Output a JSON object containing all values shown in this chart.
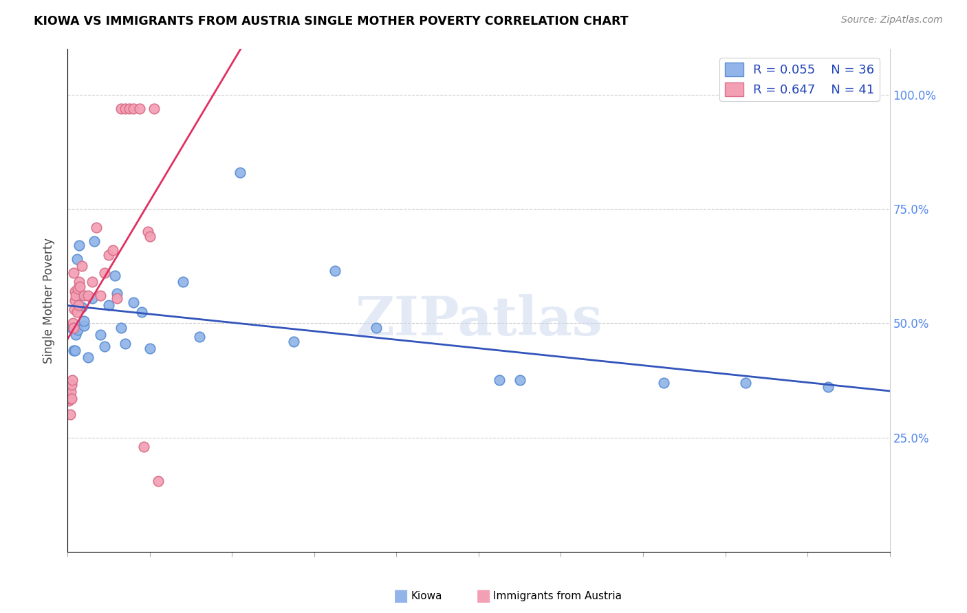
{
  "title": "KIOWA VS IMMIGRANTS FROM AUSTRIA SINGLE MOTHER POVERTY CORRELATION CHART",
  "source": "Source: ZipAtlas.com",
  "ylabel": "Single Mother Poverty",
  "ytick_labels": [
    "25.0%",
    "50.0%",
    "75.0%",
    "100.0%"
  ],
  "legend1_R": "0.055",
  "legend1_N": "36",
  "legend2_R": "0.647",
  "legend2_N": "41",
  "kiowa_color": "#92b4e8",
  "kiowa_edge": "#5a8fd4",
  "austria_color": "#f4a0b4",
  "austria_edge": "#d9708a",
  "line_blue": "#3355bb",
  "line_pink": "#e03060",
  "background": "#ffffff",
  "xlim": [
    0.0,
    0.2
  ],
  "ylim": [
    0.0,
    1.1
  ],
  "kiowa_x": [
    0.001,
    0.0012,
    0.0015,
    0.0018,
    0.002,
    0.0022,
    0.0025,
    0.0028,
    0.003,
    0.0035,
    0.004,
    0.004,
    0.005,
    0.006,
    0.0065,
    0.008,
    0.009,
    0.01,
    0.0115,
    0.012,
    0.013,
    0.014,
    0.016,
    0.018,
    0.02,
    0.028,
    0.032,
    0.042,
    0.055,
    0.065,
    0.075,
    0.105,
    0.11,
    0.145,
    0.165,
    0.185
  ],
  "kiowa_y": [
    0.49,
    0.49,
    0.44,
    0.44,
    0.475,
    0.64,
    0.485,
    0.67,
    0.56,
    0.535,
    0.495,
    0.505,
    0.425,
    0.555,
    0.68,
    0.475,
    0.45,
    0.54,
    0.605,
    0.565,
    0.49,
    0.455,
    0.545,
    0.525,
    0.445,
    0.59,
    0.47,
    0.83,
    0.46,
    0.615,
    0.49,
    0.375,
    0.375,
    0.37,
    0.37,
    0.36
  ],
  "austria_x": [
    0.0003,
    0.0004,
    0.0005,
    0.0006,
    0.0007,
    0.0008,
    0.0009,
    0.001,
    0.0011,
    0.0012,
    0.0014,
    0.0015,
    0.0016,
    0.0017,
    0.0018,
    0.002,
    0.0022,
    0.0024,
    0.0026,
    0.0028,
    0.003,
    0.0035,
    0.004,
    0.005,
    0.006,
    0.007,
    0.008,
    0.009,
    0.01,
    0.011,
    0.012,
    0.013,
    0.014,
    0.015,
    0.016,
    0.0175,
    0.0185,
    0.0195,
    0.02,
    0.021,
    0.022
  ],
  "austria_y": [
    0.33,
    0.335,
    0.34,
    0.3,
    0.335,
    0.35,
    0.335,
    0.365,
    0.375,
    0.5,
    0.49,
    0.61,
    0.53,
    0.55,
    0.57,
    0.56,
    0.525,
    0.575,
    0.54,
    0.59,
    0.58,
    0.625,
    0.56,
    0.56,
    0.59,
    0.71,
    0.56,
    0.61,
    0.65,
    0.66,
    0.555,
    0.97,
    0.97,
    0.97,
    0.97,
    0.97,
    0.23,
    0.7,
    0.69,
    0.97,
    0.155
  ]
}
